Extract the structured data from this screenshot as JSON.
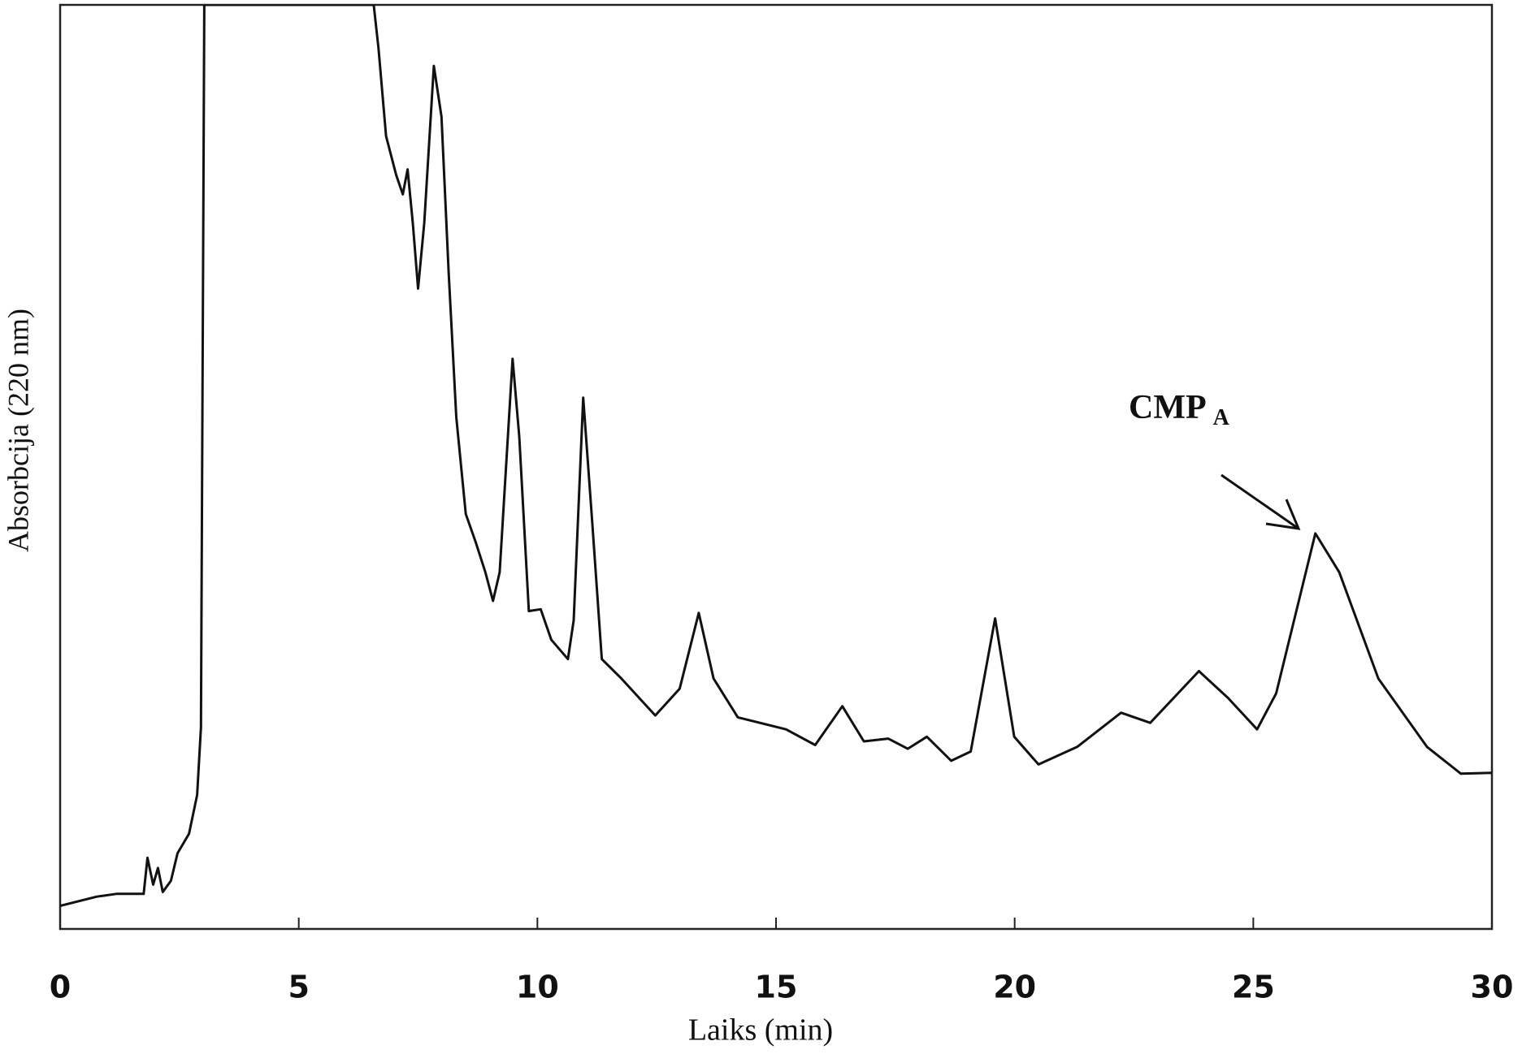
{
  "chart_data": {
    "type": "line",
    "xlabel": "Laiks (min)",
    "ylabel": "Absorbcija (220 nm)",
    "annotation": {
      "text": "CMP",
      "subscript": "A"
    },
    "color": "#111111",
    "xlim": [
      0,
      30
    ],
    "xticks": [
      0,
      5,
      10,
      15,
      20,
      25,
      30
    ],
    "ylim": [
      0,
      100
    ],
    "x": [
      0,
      0.77,
      1.18,
      1.75,
      1.83,
      1.95,
      2.05,
      2.15,
      2.32,
      2.46,
      2.7,
      2.87,
      2.95,
      3.02,
      6.57,
      6.67,
      6.83,
      7.04,
      7.18,
      7.28,
      7.39,
      7.5,
      7.63,
      7.83,
      7.99,
      8.14,
      8.3,
      8.5,
      8.71,
      8.91,
      9.07,
      9.21,
      9.48,
      9.62,
      9.82,
      10.07,
      10.29,
      10.64,
      10.76,
      10.96,
      11.15,
      11.35,
      11.76,
      12.47,
      12.98,
      13.38,
      13.69,
      14.2,
      15.21,
      15.82,
      16.39,
      16.84,
      17.35,
      17.76,
      18.16,
      18.67,
      19.08,
      19.59,
      19.99,
      20.5,
      21.31,
      22.23,
      22.84,
      23.86,
      24.47,
      25.08,
      25.48,
      26.3,
      26.8,
      27.62,
      28.64,
      29.35,
      30
    ],
    "values": [
      2.5,
      3.5,
      3.8,
      3.8,
      7.7,
      4.8,
      6.6,
      4.0,
      5.2,
      8.2,
      10.3,
      14.5,
      21.8,
      100,
      100,
      95.3,
      85.8,
      81.6,
      79.5,
      82.2,
      76.4,
      69.3,
      76.4,
      93.4,
      87.9,
      71.1,
      55.4,
      44.9,
      41.8,
      38.6,
      35.5,
      38.6,
      61.7,
      53.3,
      34.4,
      34.6,
      31.3,
      29.2,
      33.4,
      57.5,
      43.9,
      29.2,
      27.1,
      23.1,
      26.0,
      34.2,
      27.1,
      22.9,
      21.6,
      19.9,
      24.1,
      20.3,
      20.6,
      19.5,
      20.8,
      18.2,
      19.2,
      33.6,
      20.8,
      17.8,
      19.7,
      23.4,
      22.3,
      27.9,
      25.0,
      21.6,
      25.5,
      42.8,
      38.6,
      27.1,
      19.7,
      16.8,
      16.9
    ]
  }
}
